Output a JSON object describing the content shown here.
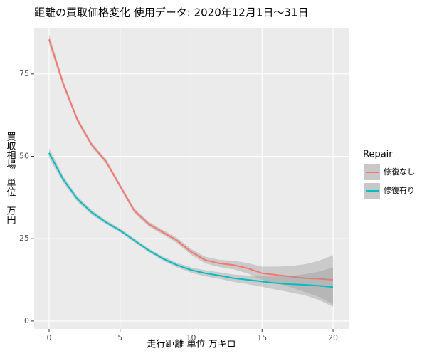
{
  "chart_data": {
    "type": "line",
    "title": "距離の買取価格変化 使用データ: 2020年12月1日～31日",
    "x_label": "走行距離 単位 万キロ",
    "y_label": "買取相場　単位　万円",
    "legend_title": "Repair",
    "x": [
      0,
      1,
      2,
      3,
      4,
      5,
      6,
      7,
      8,
      9,
      10,
      11,
      12,
      13,
      14,
      15,
      16,
      17,
      18,
      19,
      20
    ],
    "series": [
      {
        "name": "修復なし",
        "color": "#F8766D",
        "values": [
          85.5,
          72,
          61,
          53.5,
          48.5,
          41,
          33.5,
          29.5,
          27,
          24.5,
          21,
          18.5,
          17.5,
          17,
          16,
          14.5,
          14,
          13.5,
          13,
          12.8,
          12.5
        ],
        "lower": [
          84,
          71,
          60.2,
          52.8,
          47.8,
          40.3,
          32.8,
          28.8,
          26.3,
          23.7,
          20.1,
          17.5,
          16.4,
          15.7,
          14.4,
          12.5,
          11.5,
          10.3,
          8.8,
          7.3,
          5
        ],
        "upper": [
          87,
          73,
          61.8,
          54.2,
          49.2,
          41.7,
          34.2,
          30.2,
          27.7,
          25.3,
          21.9,
          19.5,
          18.6,
          18.3,
          17.6,
          16.5,
          16.5,
          16.7,
          17.2,
          18.3,
          20
        ]
      },
      {
        "name": "修復有り",
        "color": "#00BFC4",
        "values": [
          51,
          43,
          37,
          33,
          30,
          27.5,
          24.5,
          21.5,
          19,
          17,
          15.5,
          14.5,
          13.8,
          13,
          12.5,
          12,
          11.5,
          11.2,
          11,
          10.7,
          10.3
        ],
        "lower": [
          49.5,
          42,
          36.2,
          32.3,
          29.4,
          26.9,
          23.9,
          20.9,
          18.4,
          16.3,
          14.7,
          13.6,
          12.8,
          11.9,
          11.2,
          10.4,
          9.5,
          8.7,
          7.8,
          6.4,
          4.3
        ],
        "upper": [
          52.5,
          44,
          37.8,
          33.7,
          30.6,
          28.1,
          25.1,
          22.1,
          19.6,
          17.7,
          16.3,
          15.4,
          14.8,
          14.1,
          13.8,
          13.6,
          13.5,
          13.7,
          14.2,
          15,
          16.3
        ]
      }
    ],
    "xlim": [
      -1.05,
      21.1
    ],
    "xticks": [
      0,
      5,
      10,
      15,
      20
    ],
    "ylim": [
      -2.4,
      88.8
    ],
    "yticks": [
      0,
      25,
      50,
      75
    ],
    "grid": true,
    "legend_position": "right"
  }
}
